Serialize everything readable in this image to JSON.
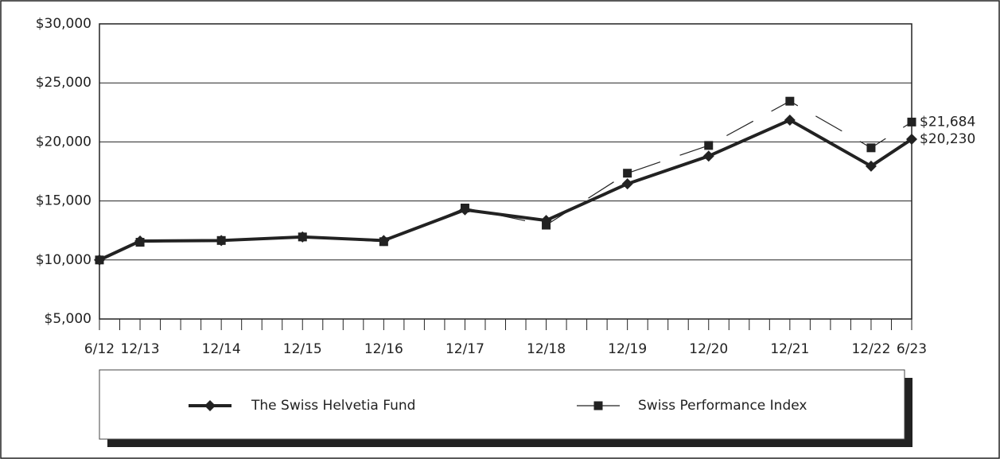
{
  "chart_data": {
    "type": "line",
    "categories": [
      "6/12",
      "12/13",
      "12/14",
      "12/15",
      "12/16",
      "12/17",
      "12/18",
      "12/19",
      "12/20",
      "12/21",
      "12/22",
      "6/23"
    ],
    "series": [
      {
        "name": "The Swiss Helvetia Fund",
        "color": "#222222",
        "marker": "diamond",
        "values": [
          10000,
          11600,
          11650,
          11950,
          11650,
          14250,
          13350,
          16450,
          18800,
          21850,
          17950,
          20230
        ],
        "value_labels": [
          null,
          null,
          null,
          null,
          null,
          null,
          null,
          null,
          null,
          null,
          null,
          "$20,230"
        ]
      },
      {
        "name": "Swiss Performance Index",
        "color": "#222222",
        "marker": "square",
        "dashed": true,
        "values": [
          10000,
          11500,
          11650,
          11950,
          11550,
          14400,
          12950,
          17350,
          19700,
          23450,
          19500,
          21684
        ],
        "value_labels": [
          null,
          null,
          null,
          null,
          null,
          null,
          null,
          null,
          null,
          null,
          null,
          "$21,684"
        ]
      }
    ],
    "ylim": [
      5000,
      30000
    ],
    "yticks": [
      {
        "value": 5000,
        "label": "$5,000"
      },
      {
        "value": 10000,
        "label": "$10,000"
      },
      {
        "value": 15000,
        "label": "$15,000"
      },
      {
        "value": 20000,
        "label": "$20,000"
      },
      {
        "value": 25000,
        "label": "$25,000"
      },
      {
        "value": 30000,
        "label": "$30,000"
      }
    ],
    "grid": true
  }
}
